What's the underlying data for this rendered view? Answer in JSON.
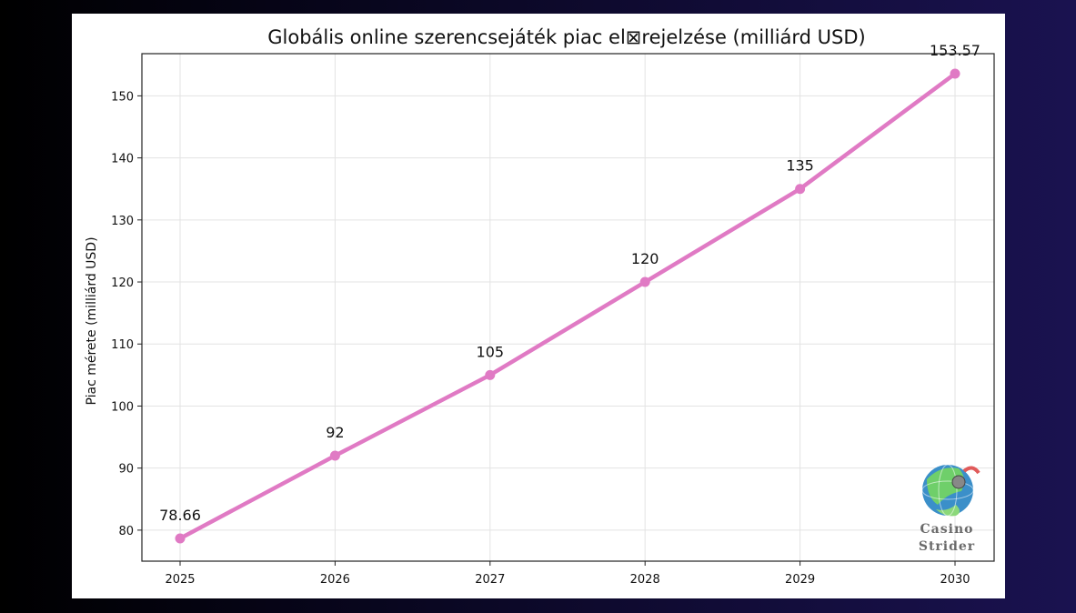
{
  "colors": {
    "line": "#e07ac4",
    "grid": "#e3e3e3",
    "axis": "#222222"
  },
  "logo": {
    "icon": "globe-icon",
    "line1": "Casino",
    "line2": "Strider"
  },
  "chart_data": {
    "type": "line",
    "title": "Globális online szerencsejáték piac el⊠rejelzése (milliárd USD)",
    "xlabel": "",
    "ylabel": "Piac mérete (milliárd USD)",
    "x": [
      "2025",
      "2026",
      "2027",
      "2028",
      "2029",
      "2030"
    ],
    "series": [
      {
        "values": [
          78.66,
          92,
          105,
          120,
          135,
          153.57
        ]
      }
    ],
    "data_labels": [
      "78.66",
      "92",
      "105",
      "120",
      "135",
      "153.57"
    ],
    "yticks": [
      80,
      90,
      100,
      110,
      120,
      130,
      140,
      150
    ],
    "ylim": [
      75,
      156.8
    ],
    "grid": true,
    "legend": "none"
  }
}
